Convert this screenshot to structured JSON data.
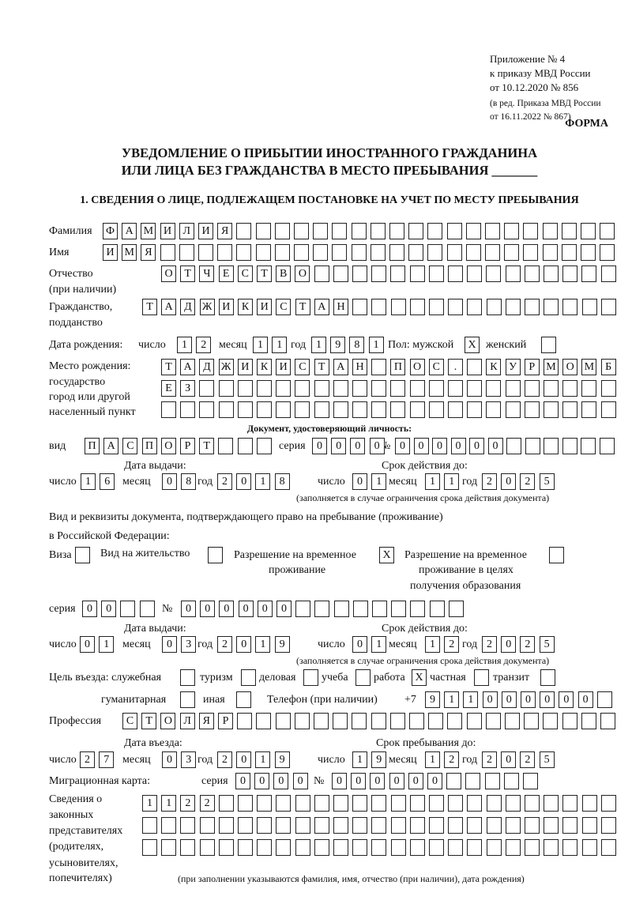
{
  "header": {
    "appendix": "Приложение № 4",
    "to_order": "к приказу МВД России",
    "order_date": "от 10.12.2020 № 856",
    "edition_1": "(в ред. Приказа МВД России",
    "edition_2": "от 16.11.2022 № 867)"
  },
  "form_label": "ФОРМА",
  "title": {
    "line1": "УВЕДОМЛЕНИЕ О ПРИБЫТИИ ИНОСТРАННОГО ГРАЖДАНИНА",
    "line2": "ИЛИ ЛИЦА БЕЗ ГРАЖДАНСТВА В МЕСТО ПРЕБЫВАНИЯ _______"
  },
  "section1": {
    "heading": "1. СВЕДЕНИЯ О ЛИЦЕ, ПОДЛЕЖАЩЕМ ПОСТАНОВКЕ НА УЧЕТ ПО МЕСТУ ПРЕБЫВАНИЯ"
  },
  "labels": {
    "surname": "Фамилия",
    "name": "Имя",
    "patronymic_1": "Отчество",
    "patronymic_2": "(при наличии)",
    "citizenship_1": "Гражданство,",
    "citizenship_2": "подданство",
    "birth_date": "Дата рождения:",
    "day": "число",
    "month": "месяц",
    "year": "год",
    "sex_male": "Пол: мужской",
    "sex_female": "женский",
    "birthplace_1": "Место рождения:",
    "birthplace_2": "государство",
    "birthplace_3": "город или другой",
    "birthplace_4": "населенный пункт",
    "id_doc": "Документ, удостоверяющий личность:",
    "kind": "вид",
    "series": "серия",
    "number": "№",
    "issue_date": "Дата выдачи:",
    "valid_until": "Срок действия до:",
    "validity_note": "(заполняется в случае ограничения срока действия документа)",
    "stay_doc_1": "Вид и реквизиты документа, подтверждающего право на пребывание (проживание)",
    "stay_doc_2": "в Российской Федерации:",
    "visa": "Виза",
    "residence_permit": "Вид на жительство",
    "temp_residence_1": "Разрешение на временное",
    "temp_residence_2": "проживание",
    "temp_edu_1": "Разрешение на временное",
    "temp_edu_2": "проживание в целях",
    "temp_edu_3": "получения образования",
    "purpose": "Цель въезда: служебная",
    "tourism": "туризм",
    "business": "деловая",
    "study": "учеба",
    "work": "работа",
    "private": "частная",
    "transit": "транзит",
    "humanitarian": "гуманитарная",
    "other": "иная",
    "phone": "Телефон (при наличии)",
    "phone_prefix": "+7",
    "profession": "Профессия",
    "entry_date": "Дата въезда:",
    "stay_until": "Срок пребывания до:",
    "migration_card": "Миграционная карта:",
    "reps_1": "Сведения о",
    "reps_2": "законных",
    "reps_3": "представителях",
    "reps_4": "(родителях,",
    "reps_5": "усыновителях,",
    "reps_6": "попечителях)",
    "reps_note": "(при заполнении указываются фамилия, имя, отчество (при наличии), дата рождения)"
  },
  "values": {
    "surname": "ФАМИЛИЯ",
    "name": "ИМЯ",
    "patronymic": "ОТЧЕСТВО",
    "citizenship": "ТАДЖИКИСТАН",
    "birth_day": "12",
    "birth_month": "11",
    "birth_year": "1981",
    "sex_male": "X",
    "sex_female": "",
    "birthplace_1": "ТАДЖИКИСТАН ПОС. КУРМОМБ",
    "birthplace_2": "ЕЗ",
    "birthplace_3": "",
    "id_kind": "ПАСПОРТ",
    "id_series": "0000",
    "id_number": "000000",
    "id_issue_day": "16",
    "id_issue_month": "08",
    "id_issue_year": "2018",
    "id_valid_day": "01",
    "id_valid_month": "11",
    "id_valid_year": "2025",
    "visa": "",
    "residence_permit": "",
    "temp_residence": "X",
    "temp_edu": "",
    "stay_series": "00",
    "stay_number": "000000",
    "stay_issue_day": "01",
    "stay_issue_month": "03",
    "stay_issue_year": "2019",
    "stay_valid_day": "01",
    "stay_valid_month": "12",
    "stay_valid_year": "2025",
    "purpose_official": "",
    "purpose_tourism": "",
    "purpose_business": "",
    "purpose_study": "",
    "purpose_work": "X",
    "purpose_private": "",
    "purpose_transit": "",
    "purpose_humanitarian": "",
    "purpose_other": "",
    "phone": "911000000",
    "profession": "СТОЛЯР",
    "entry_day": "27",
    "entry_month": "03",
    "entry_year": "2019",
    "stay_until_day": "19",
    "stay_until_month": "12",
    "stay_until_year": "2025",
    "mc_series": "0000",
    "mc_number": "000000",
    "reps_1": "1122",
    "reps_2": "",
    "reps_3": ""
  }
}
